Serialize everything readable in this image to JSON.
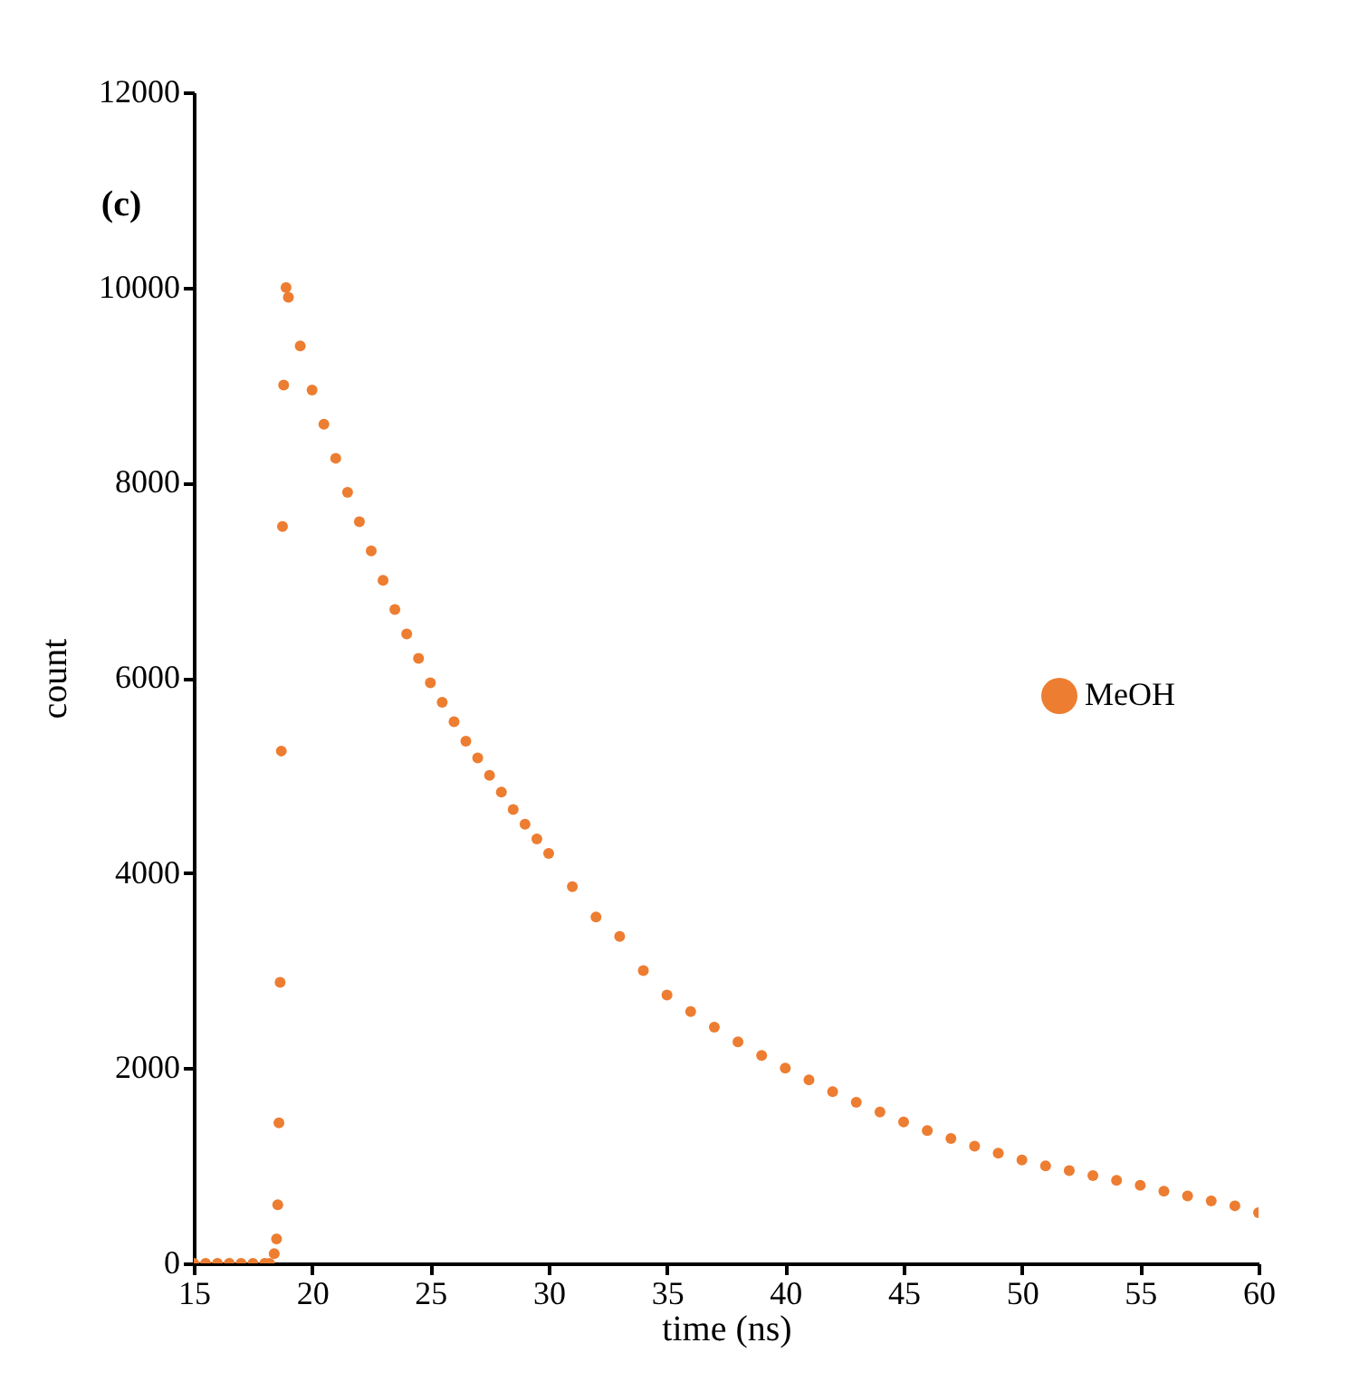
{
  "chart_data": {
    "type": "scatter",
    "xlabel": "time (ns)",
    "ylabel": "count",
    "annotations": [
      "(c)"
    ],
    "xlim": [
      15,
      60
    ],
    "xticks": [
      15,
      20,
      25,
      30,
      35,
      40,
      45,
      50,
      55,
      60
    ],
    "ylim": [
      0,
      12000
    ],
    "yticks": [
      0,
      2000,
      4000,
      6000,
      8000,
      10000,
      12000
    ],
    "grid": false,
    "legend": "right",
    "marker": "circle",
    "x": [
      15,
      15.5,
      16,
      16.5,
      17,
      17.5,
      18,
      18.2,
      18.4,
      18.5,
      18.55,
      18.6,
      18.65,
      18.7,
      18.75,
      18.8,
      18.9,
      19,
      19.5,
      20,
      20.5,
      21,
      21.5,
      22,
      22.5,
      23,
      23.5,
      24,
      24.5,
      25,
      25.5,
      26,
      26.5,
      27,
      27.5,
      28,
      28.5,
      29,
      29.5,
      30,
      31,
      32,
      33,
      34,
      35,
      36,
      37,
      38,
      39,
      40,
      41,
      42,
      43,
      44,
      45,
      46,
      47,
      48,
      49,
      50,
      51,
      52,
      53,
      54,
      55,
      56,
      57,
      58,
      59,
      60
    ],
    "series": [
      {
        "name": "MeOH",
        "color": "#ed7d31",
        "values": [
          0,
          0,
          0,
          0,
          0,
          0,
          0,
          0,
          100,
          250,
          600,
          1440,
          2880,
          5250,
          7550,
          9000,
          10000,
          9900,
          9400,
          8950,
          8600,
          8250,
          7900,
          7600,
          7300,
          7000,
          6700,
          6450,
          6200,
          5950,
          5750,
          5550,
          5350,
          5180,
          5000,
          4830,
          4650,
          4500,
          4350,
          4200,
          3860,
          3550,
          3350,
          3000,
          2750,
          2580,
          2420,
          2270,
          2130,
          2000,
          1880,
          1760,
          1650,
          1550,
          1450,
          1360,
          1280,
          1200,
          1130,
          1060,
          1000,
          950,
          900,
          850,
          800,
          740,
          690,
          640,
          590,
          520
        ]
      }
    ]
  }
}
